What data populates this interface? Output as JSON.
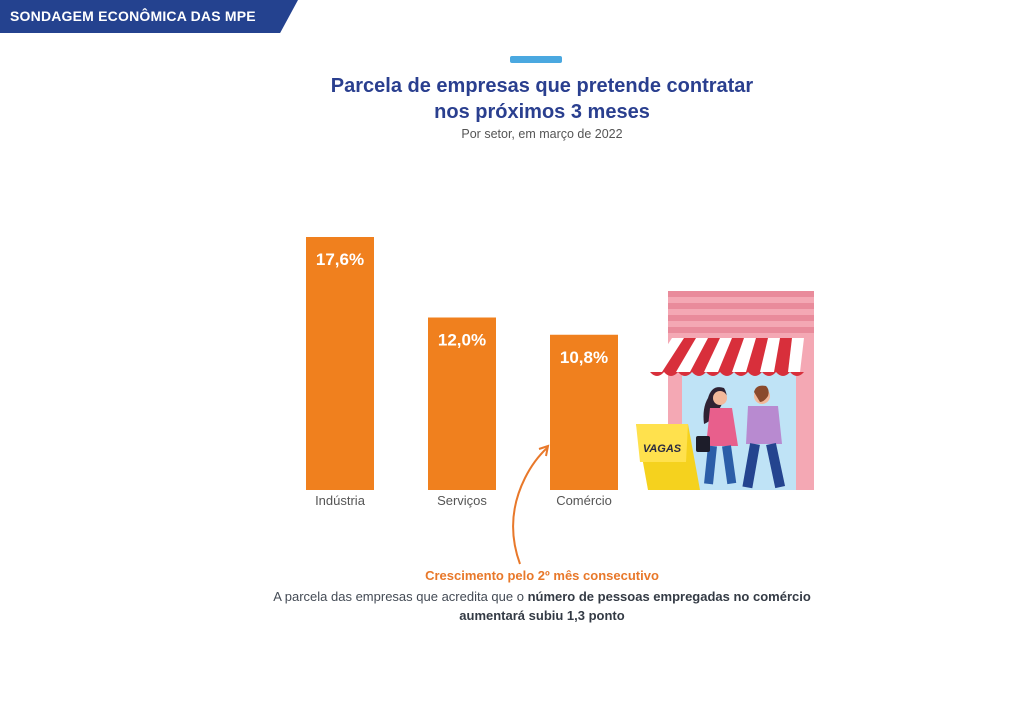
{
  "header": {
    "section_label": "SONDAGEM ECONÔMICA DAS MPE"
  },
  "chart_data": {
    "type": "bar",
    "title_line1": "Parcela de empresas que pretende contratar",
    "title_line2": "nos próximos 3 meses",
    "subtitle": "Por setor, em março de 2022",
    "categories": [
      "Indústria",
      "Serviços",
      "Comércio"
    ],
    "values": [
      17.6,
      12.0,
      10.8
    ],
    "value_labels": [
      "17,6%",
      "12,0%",
      "10,8%"
    ],
    "unit": "%",
    "ylim": [
      0,
      17.6
    ],
    "grid": false,
    "bar_color": "#f0801e"
  },
  "annotation": {
    "title": "Crescimento pelo 2º mês consecutivo",
    "body_prefix": "A parcela das empresas que acredita que o ",
    "body_bold": "número de pessoas empregadas no comércio aumentará subiu 1,3 ponto"
  },
  "illustration": {
    "sign_text": "VAGAS"
  },
  "colors": {
    "banner": "#24428f",
    "title": "#2a3f8f",
    "accent": "#4aa8e0",
    "bar": "#f0801e",
    "highlight": "#e8782a"
  }
}
